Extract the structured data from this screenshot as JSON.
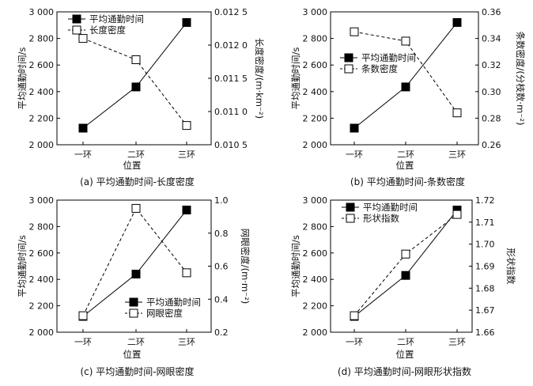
{
  "chart_data": [
    {
      "type": "line",
      "caption": "(a) 平均通勤时间-长度密度",
      "xlabel": "位置",
      "categories": [
        "一环",
        "二环",
        "三环"
      ],
      "y_left": {
        "label": "平均通勤时间/s",
        "ticks": [
          "2 000",
          "2 200",
          "2 400",
          "2 600",
          "2 800",
          "3 000"
        ],
        "lim": [
          2000,
          3000
        ]
      },
      "y_right": {
        "label": "长度密度/(m·km⁻²)",
        "ticks": [
          "0.010 5",
          "0.011 0",
          "0.011 5",
          "0.012 0",
          "0.012 5"
        ],
        "lim": [
          0.0105,
          0.0125
        ]
      },
      "series": [
        {
          "name": "平均通勤时间",
          "axis": "left",
          "marker": "filled",
          "line": "solid",
          "values": [
            2125,
            2435,
            2920
          ]
        },
        {
          "name": "长度密度",
          "axis": "right",
          "marker": "open",
          "line": "dashed",
          "values": [
            0.0121,
            0.01178,
            0.01079
          ]
        }
      ],
      "legend_pos": "top-left"
    },
    {
      "type": "line",
      "caption": "(b) 平均通勤时间-条数密度",
      "xlabel": "位置",
      "categories": [
        "一环",
        "二环",
        "三环"
      ],
      "y_left": {
        "label": "平均通勤时间/s",
        "ticks": [
          "2 000",
          "2 200",
          "2 400",
          "2 600",
          "2 800",
          "3 000"
        ],
        "lim": [
          2000,
          3000
        ]
      },
      "y_right": {
        "label": "条数密度/(分枝数·m⁻²)",
        "ticks": [
          "0.26",
          "0.28",
          "0.30",
          "0.32",
          "0.34",
          "0.36"
        ],
        "lim": [
          0.26,
          0.36
        ]
      },
      "series": [
        {
          "name": "平均通勤时间",
          "axis": "left",
          "marker": "filled",
          "line": "solid",
          "values": [
            2125,
            2435,
            2920
          ]
        },
        {
          "name": "条数密度",
          "axis": "right",
          "marker": "open",
          "line": "dashed",
          "values": [
            0.345,
            0.338,
            0.284
          ]
        }
      ],
      "legend_pos": "middle-left"
    },
    {
      "type": "line",
      "caption": "(c) 平均通勤时间-网眼密度",
      "xlabel": "位置",
      "categories": [
        "一环",
        "二环",
        "三环"
      ],
      "y_left": {
        "label": "平均通勤时间/s",
        "ticks": [
          "2 000",
          "2 200",
          "2 400",
          "2 600",
          "2 800",
          "3 000"
        ],
        "lim": [
          2000,
          3000
        ]
      },
      "y_right": {
        "label": "网眼密度/(m·m⁻²)",
        "ticks": [
          "0.2",
          "0.4",
          "0.6",
          "0.8",
          "1.0"
        ],
        "lim": [
          0.2,
          1.0
        ]
      },
      "series": [
        {
          "name": "平均通勤时间",
          "axis": "left",
          "marker": "filled",
          "line": "solid",
          "values": [
            2120,
            2440,
            2925
          ]
        },
        {
          "name": "网眼密度",
          "axis": "right",
          "marker": "open",
          "line": "dashed",
          "values": [
            0.3,
            0.95,
            0.56
          ]
        }
      ],
      "legend_pos": "bottom-right"
    },
    {
      "type": "line",
      "caption": "(d) 平均通勤时间-网眼形状指数",
      "xlabel": "位置",
      "categories": [
        "一环",
        "二环",
        "三环"
      ],
      "y_left": {
        "label": "平均通勤时间/s",
        "ticks": [
          "2 000",
          "2 200",
          "2 400",
          "2 600",
          "2 800",
          "3 000"
        ],
        "lim": [
          2000,
          3000
        ]
      },
      "y_right": {
        "label": "形状指数",
        "ticks": [
          "1.66",
          "1.67",
          "1.68",
          "1.69",
          "1.70",
          "1.71",
          "1.72"
        ],
        "lim": [
          1.66,
          1.72
        ]
      },
      "series": [
        {
          "name": "平均通勤时间",
          "axis": "left",
          "marker": "filled",
          "line": "solid",
          "values": [
            2120,
            2430,
            2925
          ]
        },
        {
          "name": "形状指数",
          "axis": "right",
          "marker": "open",
          "line": "dashed",
          "values": [
            1.6675,
            1.6955,
            1.7135
          ]
        }
      ],
      "legend_pos": "top-left"
    }
  ]
}
